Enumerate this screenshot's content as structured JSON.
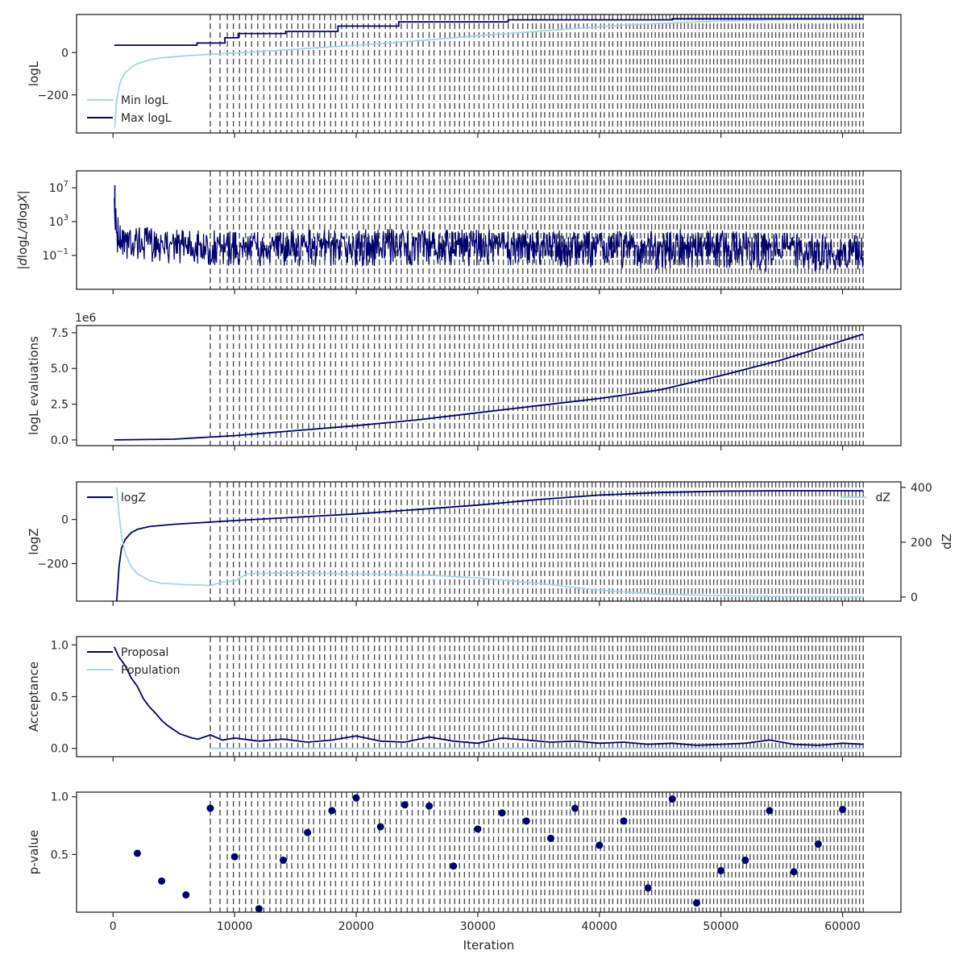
{
  "colors": {
    "dark": "#00006e",
    "light": "#a6d5e0",
    "vline": "#262626",
    "frame": "#262626"
  },
  "x_axis": {
    "label": "Iteration",
    "ticks": [
      0,
      10000,
      20000,
      30000,
      40000,
      50000,
      60000
    ],
    "tick_labels": [
      "0",
      "10000",
      "20000",
      "30000",
      "40000",
      "50000",
      "60000"
    ],
    "lim": [
      -3000,
      64800
    ]
  },
  "chart_data": [
    {
      "type": "line",
      "ylabel": "logL",
      "ylim": [
        -380,
        180
      ],
      "y_ticks": [
        0,
        -200
      ],
      "y_tick_labels": [
        "0",
        "−200"
      ],
      "legend": {
        "placement": "bottom-left",
        "entries": [
          "Min logL",
          "Max logL"
        ]
      },
      "series": [
        {
          "name": "Min logL",
          "color": "light",
          "x": [
            150,
            200,
            300,
            400,
            500,
            700,
            1000,
            1500,
            2000,
            3000,
            4000,
            6000,
            8000,
            10000,
            14000,
            20000,
            26000,
            30000,
            36000,
            42000,
            48000,
            54000,
            61700
          ],
          "y": [
            -355,
            -290,
            -230,
            -195,
            -160,
            -125,
            -95,
            -70,
            -52,
            -35,
            -25,
            -15,
            -8,
            -2,
            12,
            35,
            60,
            80,
            105,
            130,
            145,
            155,
            160
          ]
        },
        {
          "name": "Max logL",
          "color": "dark",
          "x": [
            100,
            6900,
            6900,
            9200,
            9200,
            10300,
            10300,
            14200,
            14200,
            18500,
            18500,
            23500,
            23500,
            32500,
            32500,
            46000,
            46000,
            61700
          ],
          "y": [
            35,
            35,
            45,
            45,
            70,
            70,
            90,
            90,
            100,
            100,
            125,
            125,
            145,
            145,
            155,
            155,
            160,
            160
          ]
        }
      ]
    },
    {
      "type": "line",
      "ylabel": "|d logL/d logX|",
      "y_scale": "log",
      "ylim": [
        1e-05,
        1000000000.0
      ],
      "y_ticks": [
        10000000.0,
        1000,
        0.1
      ],
      "y_tick_labels": [
        "10^7",
        "10^3",
        "10^−1"
      ],
      "series": [
        {
          "name": "",
          "color": "dark",
          "envelope_x": [
            100,
            500,
            2000,
            5000,
            10000,
            20000,
            30000,
            40000,
            45000,
            50000,
            55000,
            61700
          ],
          "envelope_upper": [
            1000000.0,
            5000,
            300,
            150,
            100,
            150,
            130,
            100,
            150,
            90,
            50,
            30
          ],
          "envelope_lower": [
            0.3,
            0.05,
            0.02,
            0.01,
            0.005,
            0.005,
            0.005,
            0.003,
            0.002,
            0.002,
            0.001,
            0.002
          ],
          "spike": {
            "x": 150,
            "y": 20000000.0
          }
        }
      ]
    },
    {
      "type": "line",
      "ylabel": "logL evaluations",
      "offset_text": "1e6",
      "ylim": [
        -0.4,
        8.0
      ],
      "y_ticks": [
        0.0,
        2.5,
        5.0,
        7.5
      ],
      "y_tick_labels": [
        "0.0",
        "2.5",
        "5.0",
        "7.5"
      ],
      "series": [
        {
          "name": "",
          "color": "dark",
          "x": [
            100,
            5000,
            10000,
            15000,
            20000,
            25000,
            30000,
            35000,
            40000,
            45000,
            50000,
            55000,
            61700
          ],
          "y": [
            0.0,
            0.05,
            0.3,
            0.65,
            1.0,
            1.4,
            1.9,
            2.4,
            2.9,
            3.5,
            4.5,
            5.6,
            7.4
          ]
        }
      ]
    },
    {
      "type": "line",
      "ylabel": "logZ",
      "ylim": [
        -370,
        170
      ],
      "y_ticks": [
        0,
        -200
      ],
      "y_tick_labels": [
        "0",
        "−200"
      ],
      "legend": {
        "placement": "top-left",
        "entries": [
          "logZ"
        ]
      },
      "right_axis": {
        "ylabel": "dZ",
        "ylim": [
          -15,
          420
        ],
        "y_ticks": [
          0,
          200,
          400
        ],
        "y_tick_labels": [
          "0",
          "200",
          "400"
        ],
        "legend": {
          "placement": "top-right",
          "entries": [
            "dZ"
          ]
        }
      },
      "series": [
        {
          "name": "logZ",
          "color": "dark",
          "x": [
            300,
            500,
            700,
            1000,
            1500,
            2000,
            3000,
            5000,
            8000,
            10000,
            15000,
            20000,
            25000,
            30000,
            35000,
            40000,
            45000,
            50000,
            55000,
            61700
          ],
          "y": [
            -370,
            -210,
            -130,
            -90,
            -60,
            -45,
            -32,
            -22,
            -12,
            -5,
            10,
            25,
            45,
            65,
            90,
            110,
            122,
            128,
            130,
            130
          ]
        },
        {
          "name": "dZ",
          "color": "light",
          "axis": "right",
          "x": [
            300,
            500,
            700,
            1000,
            1500,
            2000,
            3000,
            4000,
            5000,
            6000,
            8000,
            9000,
            10000,
            11000,
            14000,
            20000,
            26000,
            30000,
            35000,
            40000,
            45000,
            50000,
            55000,
            61700
          ],
          "y": [
            400,
            300,
            220,
            160,
            110,
            85,
            60,
            50,
            48,
            45,
            42,
            55,
            58,
            85,
            88,
            85,
            80,
            70,
            50,
            25,
            10,
            5,
            2,
            1
          ]
        }
      ]
    },
    {
      "type": "line",
      "ylabel": "Acceptance",
      "ylim": [
        -0.08,
        1.08
      ],
      "y_ticks": [
        0.0,
        0.5,
        1.0
      ],
      "y_tick_labels": [
        "0.0",
        "0.5",
        "1.0"
      ],
      "legend": {
        "placement": "top-left",
        "entries": [
          "Proposal",
          "Population"
        ]
      },
      "series": [
        {
          "name": "Proposal",
          "color": "dark",
          "x": [
            100,
            500,
            1000,
            1500,
            2000,
            2500,
            3000,
            3500,
            4000,
            4500,
            5000,
            5500,
            6000,
            6500,
            7000,
            8000,
            9000,
            10000,
            12000,
            14000,
            16000,
            18000,
            20000,
            22000,
            24000,
            26000,
            28000,
            30000,
            32000,
            34000,
            36000,
            38000,
            40000,
            42000,
            44000,
            46000,
            48000,
            50000,
            52000,
            54000,
            56000,
            58000,
            60000,
            61700
          ],
          "y": [
            0.98,
            0.88,
            0.8,
            0.68,
            0.6,
            0.48,
            0.4,
            0.34,
            0.27,
            0.22,
            0.18,
            0.14,
            0.12,
            0.1,
            0.09,
            0.13,
            0.08,
            0.1,
            0.07,
            0.09,
            0.06,
            0.08,
            0.12,
            0.07,
            0.06,
            0.11,
            0.07,
            0.05,
            0.1,
            0.08,
            0.06,
            0.07,
            0.05,
            0.06,
            0.04,
            0.05,
            0.03,
            0.04,
            0.05,
            0.08,
            0.04,
            0.03,
            0.05,
            0.04
          ]
        },
        {
          "name": "Population",
          "color": "light",
          "x": [
            8000,
            61700
          ],
          "y": [
            0.0,
            0.0
          ]
        }
      ]
    },
    {
      "type": "scatter",
      "ylabel": "p-value",
      "ylim": [
        0.0,
        1.04
      ],
      "y_ticks": [
        0.5,
        1.0
      ],
      "y_tick_labels": [
        "0.5",
        "1.0"
      ],
      "series": [
        {
          "name": "",
          "color": "dark",
          "x": [
            2000,
            4000,
            6000,
            8000,
            10000,
            12000,
            14000,
            16000,
            18000,
            20000,
            22000,
            24000,
            26000,
            28000,
            30000,
            32000,
            34000,
            36000,
            38000,
            40000,
            42000,
            44000,
            46000,
            48000,
            50000,
            52000,
            54000,
            56000,
            58000,
            60000
          ],
          "y": [
            0.51,
            0.27,
            0.15,
            0.9,
            0.48,
            0.03,
            0.45,
            0.69,
            0.88,
            0.99,
            0.74,
            0.93,
            0.92,
            0.4,
            0.72,
            0.86,
            0.79,
            0.64,
            0.9,
            0.58,
            0.79,
            0.21,
            0.98,
            0.08,
            0.36,
            0.45,
            0.88,
            0.35,
            0.59,
            0.89
          ]
        }
      ]
    }
  ],
  "restarts": {
    "dense_range": [
      8000,
      61700
    ],
    "x": [
      8000,
      8800,
      9400,
      9900,
      10400,
      10900,
      11400,
      11900,
      12400,
      12900,
      13400,
      13800,
      14300,
      14700,
      15200,
      15600,
      16100,
      16500,
      17000,
      17400,
      17900,
      18300,
      18800,
      19200,
      19700,
      20100,
      20600,
      21000,
      21500,
      21900,
      22400,
      22800,
      23300,
      23700,
      24200,
      24600,
      25100,
      25500,
      26000,
      26400,
      26900,
      27300,
      27700,
      28100,
      28500,
      28900,
      29300,
      29700,
      30100,
      30500,
      30900,
      31300,
      31700,
      32100,
      32500,
      32900,
      33300,
      33700,
      34100,
      34500,
      34800,
      35200,
      35500,
      35900,
      36200,
      36600,
      36900,
      37300,
      37600,
      38000,
      38300,
      38700,
      39000,
      39400,
      39700,
      40100,
      40400,
      40800,
      41100,
      41500,
      41800,
      42200,
      42500,
      42800,
      43100,
      43400,
      43700,
      44000,
      44300,
      44600,
      44900,
      45200,
      45500,
      45800,
      46100,
      46400,
      46700,
      47000,
      47300,
      47600,
      47900,
      48200,
      48500,
      48800,
      49100,
      49400,
      49700,
      50000,
      50300,
      50600,
      50900,
      51200,
      51500,
      51800,
      52100,
      52400,
      52700,
      53000,
      53300,
      53600,
      53900,
      54200,
      54500,
      54800,
      55100,
      55400,
      55700,
      56000,
      56300,
      56600,
      56900,
      57200,
      57500,
      57800,
      58100,
      58400,
      58700,
      59000,
      59300,
      59600,
      59900,
      60200,
      60500,
      60800,
      61100,
      61400,
      61700
    ]
  }
}
